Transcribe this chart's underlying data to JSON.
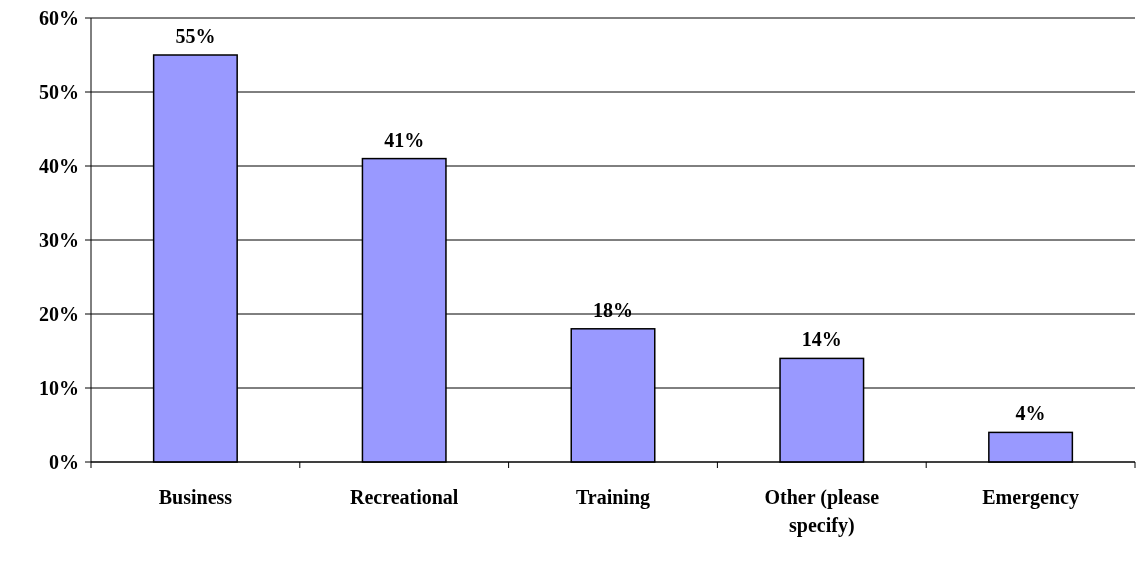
{
  "chart_data": {
    "type": "bar",
    "categories": [
      "Business",
      "Recreational",
      "Training",
      "Other (please specify)",
      "Emergency"
    ],
    "values": [
      55,
      41,
      18,
      14,
      4
    ],
    "value_labels": [
      "55%",
      "41%",
      "18%",
      "14%",
      "4%"
    ],
    "color": "#9999ff",
    "ylim": [
      0,
      60
    ],
    "yticks": [
      {
        "value": 0,
        "label": "0%"
      },
      {
        "value": 10,
        "label": "10%"
      },
      {
        "value": 20,
        "label": "20%"
      },
      {
        "value": 30,
        "label": "30%"
      },
      {
        "value": 40,
        "label": "40%"
      },
      {
        "value": 50,
        "label": "50%"
      },
      {
        "value": 60,
        "label": "60%"
      }
    ],
    "grid": "y"
  }
}
